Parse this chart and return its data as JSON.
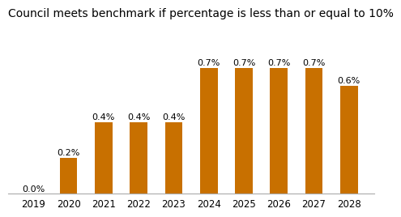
{
  "categories": [
    "2019",
    "2020",
    "2021",
    "2022",
    "2023",
    "2024",
    "2025",
    "2026",
    "2027",
    "2028"
  ],
  "values": [
    0.0,
    0.2,
    0.4,
    0.4,
    0.4,
    0.7,
    0.7,
    0.7,
    0.7,
    0.6
  ],
  "bar_color": "#C87000",
  "title": "Council meets benchmark if percentage is less than or equal to 10%",
  "title_fontsize": 10,
  "label_fontsize": 8,
  "tick_fontsize": 8.5,
  "background_color": "#ffffff",
  "ylim": [
    0,
    0.95
  ],
  "bar_width": 0.5
}
